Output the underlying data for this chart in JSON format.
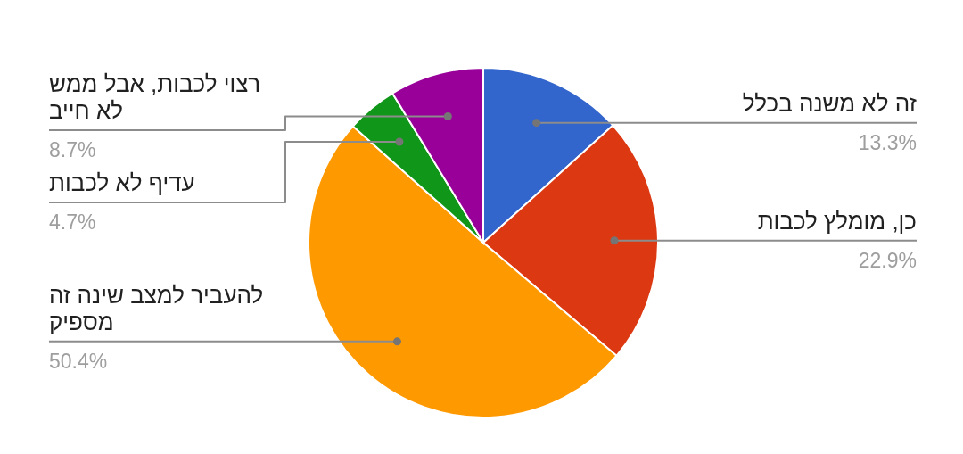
{
  "chart_data": {
    "type": "pie",
    "categories": [
      "זה לא משנה בכלל",
      "כן, מומלץ לכבות",
      "להעביר למצב שינה זה מספיק",
      "עדיף לא לכבות",
      "רצוי לכבות, אבל ממש לא חייב"
    ],
    "values": [
      13.3,
      22.9,
      50.4,
      4.7,
      8.7
    ],
    "colors": [
      "#3366cc",
      "#dc3912",
      "#ff9900",
      "#109618",
      "#990099"
    ],
    "value_labels": [
      "13.3%",
      "22.9%",
      "50.4%",
      "4.7%",
      "8.7%"
    ]
  }
}
